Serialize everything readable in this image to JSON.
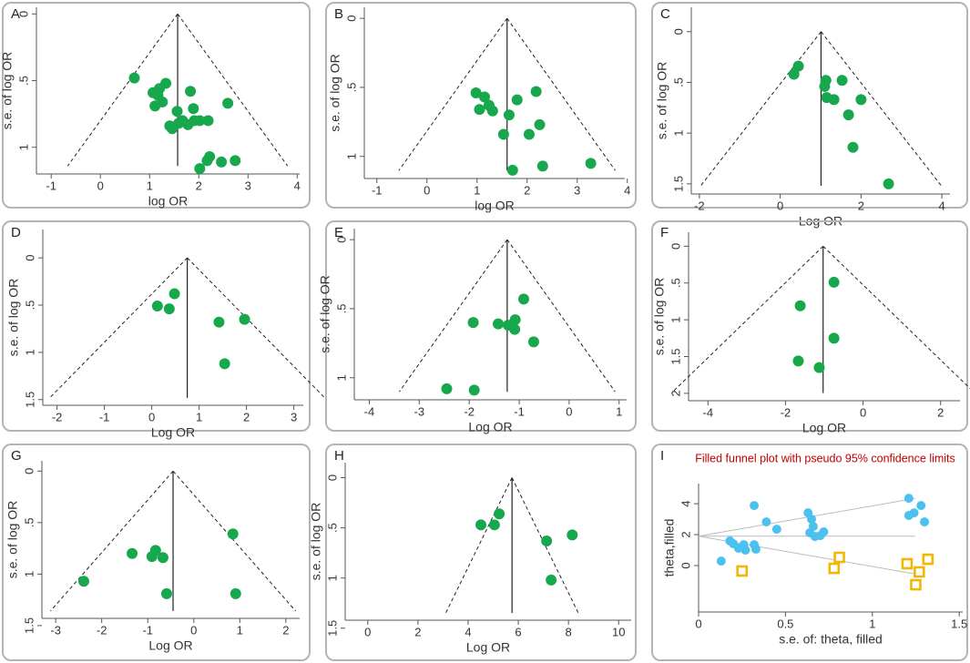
{
  "chart_data": [
    {
      "type": "funnel",
      "panel": "A",
      "x_label": "log OR",
      "y_label": "s.e. of log OR",
      "xlim": [
        -1.3,
        4.05
      ],
      "ylim": [
        -0.05,
        1.2
      ],
      "y_reversed": true,
      "xticks": [
        -1,
        0,
        1,
        2,
        3,
        4
      ],
      "yticks": [
        0,
        {
          "value": 0.5,
          "label": ".5"
        },
        1
      ],
      "pooled": 1.57,
      "series": [
        {
          "color": "#17a84e",
          "marker": "circle",
          "x": [
            0.69,
            1.07,
            1.2,
            1.33,
            1.26,
            1.11,
            1.17,
            1.83,
            1.89,
            1.56,
            1.67,
            1.59,
            1.46,
            1.41,
            1.91,
            1.78,
            2.02,
            2.19,
            2.59,
            2.22,
            2.17,
            2.02,
            2.46,
            2.74
          ],
          "y": [
            0.48,
            0.59,
            0.56,
            0.52,
            0.66,
            0.69,
            0.61,
            0.58,
            0.71,
            0.73,
            0.8,
            0.82,
            0.86,
            0.84,
            0.8,
            0.83,
            0.8,
            0.8,
            0.67,
            1.07,
            1.1,
            1.16,
            1.11,
            1.1
          ]
        }
      ]
    },
    {
      "type": "funnel",
      "panel": "B",
      "x_label": "log OR",
      "y_label": "s.e. of log OR",
      "xlim": [
        -1.25,
        3.95
      ],
      "ylim": [
        -0.08,
        1.16
      ],
      "y_reversed": true,
      "xticks": [
        -1,
        0,
        1,
        2,
        3,
        4
      ],
      "yticks": [
        0,
        {
          "value": 0.5,
          "label": ".5"
        },
        1
      ],
      "pooled": 1.6,
      "series": [
        {
          "color": "#17a84e",
          "marker": "circle",
          "x": [
            0.98,
            1.15,
            1.24,
            1.05,
            1.31,
            1.8,
            2.18,
            1.64,
            2.25,
            1.53,
            2.04,
            1.71,
            2.31,
            3.27
          ],
          "y": [
            0.54,
            0.57,
            0.63,
            0.66,
            0.67,
            0.59,
            0.53,
            0.7,
            0.77,
            0.84,
            0.84,
            1.1,
            1.07,
            1.05
          ]
        }
      ]
    },
    {
      "type": "funnel",
      "panel": "C",
      "x_label": "Log OR",
      "y_label": "s.e. of log OR",
      "xlim": [
        -2.2,
        4.2
      ],
      "ylim": [
        -0.24,
        1.6
      ],
      "y_reversed": true,
      "xticks": [
        -2,
        0,
        2,
        4
      ],
      "yticks": [
        0,
        {
          "value": 0.5,
          "label": ".5"
        },
        1,
        1.5
      ],
      "pooled": 1.01,
      "series": [
        {
          "color": "#17a84e",
          "marker": "circle",
          "x": [
            0.45,
            0.34,
            1.13,
            1.1,
            1.15,
            1.33,
            1.53,
            1.69,
            2.0,
            1.8,
            2.68
          ],
          "y": [
            0.34,
            0.42,
            0.48,
            0.54,
            0.65,
            0.67,
            0.48,
            0.82,
            0.67,
            1.14,
            1.5
          ]
        }
      ]
    },
    {
      "type": "funnel",
      "panel": "D",
      "x_label": "Log OR",
      "y_label": "s.e. of log OR",
      "xlim": [
        -2.3,
        3.2
      ],
      "ylim": [
        -0.3,
        1.56
      ],
      "y_reversed": true,
      "xticks": [
        -2,
        -1,
        0,
        1,
        2,
        3
      ],
      "yticks": [
        0,
        {
          "value": 0.5,
          "label": ".5"
        },
        1,
        1.5
      ],
      "pooled": 0.75,
      "series": [
        {
          "color": "#17a84e",
          "marker": "circle",
          "x": [
            0.12,
            0.37,
            0.48,
            1.42,
            1.96,
            1.54
          ],
          "y": [
            0.51,
            0.54,
            0.38,
            0.68,
            0.65,
            1.12
          ]
        }
      ]
    },
    {
      "type": "funnel",
      "panel": "E",
      "x_label": "Log OR",
      "y_label": "s.e. of log OR",
      "xlim": [
        -4.3,
        1.15
      ],
      "ylim": [
        -0.08,
        1.16
      ],
      "y_reversed": true,
      "xticks": [
        -4,
        -3,
        -2,
        -1,
        0,
        1
      ],
      "yticks": [
        0,
        {
          "value": 0.5,
          "label": ".5"
        },
        1
      ],
      "pooled": -1.24,
      "series": [
        {
          "color": "#17a84e",
          "marker": "circle",
          "x": [
            -0.91,
            -1.08,
            -1.22,
            -1.09,
            -0.71,
            -1.42,
            -1.92,
            -2.45,
            -1.9
          ],
          "y": [
            0.43,
            0.58,
            0.62,
            0.65,
            0.74,
            0.61,
            0.6,
            1.08,
            1.09
          ]
        }
      ]
    },
    {
      "type": "funnel",
      "panel": "F",
      "x_label": "Log OR",
      "y_label": "s.e. of log OR",
      "xlim": [
        -4.5,
        2.5
      ],
      "ylim": [
        -0.19,
        2.1
      ],
      "y_reversed": true,
      "xticks": [
        -4,
        -2,
        0,
        2
      ],
      "yticks": [
        0,
        {
          "value": 0.5,
          "label": ".5"
        },
        1,
        1.5,
        2
      ],
      "pooled": -1.03,
      "series": [
        {
          "color": "#17a84e",
          "marker": "circle",
          "x": [
            -0.75,
            -1.62,
            -0.75,
            -1.67,
            -1.13
          ],
          "y": [
            0.49,
            0.81,
            1.25,
            1.56,
            1.65
          ]
        }
      ]
    },
    {
      "type": "funnel",
      "panel": "G",
      "x_label": "Log OR",
      "y_label": "s.e. of log OR",
      "xlim": [
        -3.3,
        2.3
      ],
      "ylim": [
        -0.1,
        1.43
      ],
      "y_reversed": true,
      "xticks": [
        -3,
        -2,
        -1,
        0,
        1,
        2
      ],
      "yticks": [
        0,
        {
          "value": 0.5,
          "label": ".5"
        },
        1,
        1.5
      ],
      "pooled": -0.45,
      "series": [
        {
          "color": "#17a84e",
          "marker": "circle",
          "x": [
            -1.34,
            -0.83,
            -0.91,
            -0.67,
            0.85,
            -2.39,
            -0.59,
            0.91
          ],
          "y": [
            0.8,
            0.77,
            0.83,
            0.84,
            0.61,
            1.07,
            1.19,
            1.19
          ]
        }
      ]
    },
    {
      "type": "funnel",
      "panel": "H",
      "x_label": "Log OR",
      "y_label": "s.e. of log OR",
      "xlim": [
        -0.9,
        10.5
      ],
      "ylim": [
        -0.15,
        1.42
      ],
      "y_reversed": true,
      "xticks": [
        0,
        2,
        4,
        6,
        8,
        10
      ],
      "yticks": [
        0,
        {
          "value": 0.5,
          "label": ".5"
        },
        1,
        1.5
      ],
      "pooled": 5.75,
      "series": [
        {
          "color": "#17a84e",
          "marker": "circle",
          "x": [
            4.51,
            5.05,
            5.24,
            7.13,
            8.15,
            7.31
          ],
          "y": [
            0.47,
            0.47,
            0.36,
            0.63,
            0.57,
            1.02
          ]
        }
      ]
    },
    {
      "type": "filled_funnel",
      "panel": "I",
      "title": "Filled funnel plot with pseudo 95% confidence limits",
      "x_label": "s.e. of: theta, filled",
      "y_label": "theta,filled",
      "xlim": [
        0,
        1.52
      ],
      "ylim": [
        -3,
        5.3
      ],
      "xticks": [
        0,
        0.5,
        1,
        1.5
      ],
      "yticks": [
        0,
        2,
        4
      ],
      "pooled": 1.9,
      "series": [
        {
          "color": "#4cc0ee",
          "marker": "circle",
          "x": [
            0.13,
            0.18,
            0.2,
            0.23,
            0.26,
            0.27,
            0.32,
            0.33,
            0.32,
            0.39,
            0.45,
            0.63,
            0.65,
            0.66,
            0.64,
            0.67,
            0.7,
            0.72,
            1.21,
            1.24,
            1.28,
            1.21,
            1.3
          ],
          "y": [
            0.29,
            1.59,
            1.41,
            1.12,
            1.35,
            1.0,
            1.35,
            1.06,
            3.88,
            2.82,
            2.35,
            3.41,
            3.0,
            2.53,
            2.12,
            1.88,
            1.94,
            2.18,
            4.35,
            3.41,
            3.88,
            3.24,
            2.82
          ]
        },
        {
          "color": "#f2b705",
          "marker": "square",
          "x": [
            0.25,
            0.78,
            0.81,
            1.2,
            1.27,
            1.25,
            1.32
          ],
          "y": [
            -0.35,
            -0.18,
            0.53,
            0.12,
            -0.41,
            -1.24,
            0.41
          ]
        }
      ]
    }
  ]
}
